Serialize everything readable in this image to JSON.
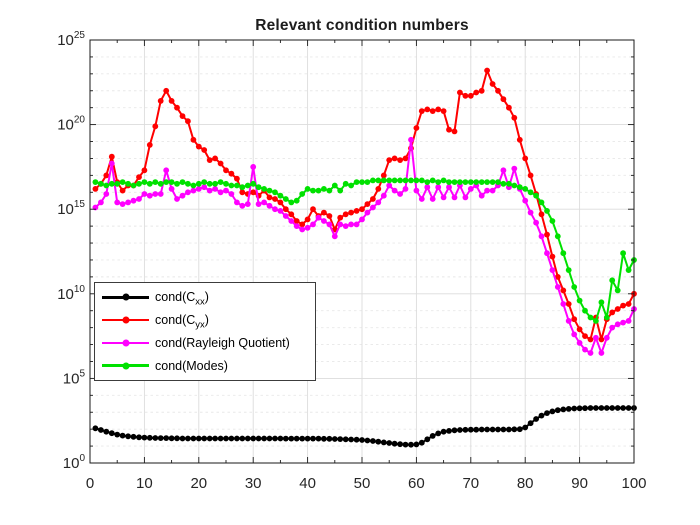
{
  "figure": {
    "background": "#ffffff",
    "axes_color": "#1a1a1a",
    "grid_major_color": "#dcdcdc",
    "grid_minor_color": "#e8e8e8"
  },
  "chart_data": {
    "type": "line",
    "title": "Relevant condition numbers",
    "xlabel": "",
    "ylabel": "",
    "xlim": [
      0,
      100
    ],
    "x_ticks": [
      0,
      10,
      20,
      30,
      40,
      50,
      60,
      70,
      80,
      90,
      100
    ],
    "y_scale": "log10",
    "y_tick_base": "10",
    "y_tick_exponents": [
      0,
      5,
      10,
      15,
      20,
      25
    ],
    "ylim_exponents": [
      0,
      25
    ],
    "grid": "major solid at labeled ticks, minor dashed at every decade",
    "legend_position": "inside middle-left",
    "x_start": 1,
    "x_step": 1,
    "values_note": "log10_values are the base-10 exponents read from the log axis; x runs 1..100",
    "series": [
      {
        "name": "cond(C_xx)",
        "label_pre": "cond(C",
        "label_sub": "xx",
        "label_post": ")",
        "color": "#000000",
        "log10_values": [
          2.05,
          1.95,
          1.85,
          1.76,
          1.68,
          1.62,
          1.58,
          1.55,
          1.52,
          1.5,
          1.49,
          1.48,
          1.47,
          1.47,
          1.46,
          1.46,
          1.45,
          1.45,
          1.45,
          1.45,
          1.45,
          1.45,
          1.45,
          1.45,
          1.45,
          1.45,
          1.45,
          1.45,
          1.45,
          1.45,
          1.45,
          1.45,
          1.45,
          1.45,
          1.45,
          1.44,
          1.44,
          1.44,
          1.44,
          1.44,
          1.44,
          1.44,
          1.43,
          1.43,
          1.42,
          1.41,
          1.4,
          1.39,
          1.38,
          1.36,
          1.33,
          1.3,
          1.26,
          1.22,
          1.18,
          1.14,
          1.11,
          1.09,
          1.08,
          1.1,
          1.2,
          1.4,
          1.6,
          1.75,
          1.85,
          1.9,
          1.93,
          1.95,
          1.96,
          1.97,
          1.97,
          1.98,
          1.98,
          1.98,
          1.98,
          1.98,
          1.98,
          1.99,
          2.0,
          2.1,
          2.35,
          2.6,
          2.8,
          2.95,
          3.05,
          3.12,
          3.17,
          3.2,
          3.22,
          3.23,
          3.24,
          3.25,
          3.25,
          3.25,
          3.25,
          3.25,
          3.25,
          3.25,
          3.25,
          3.25
        ]
      },
      {
        "name": "cond(C_yx)",
        "label_pre": "cond(C",
        "label_sub": "yx",
        "label_post": ")",
        "color": "#ff0000",
        "log10_values": [
          16.2,
          16.5,
          17.0,
          18.1,
          16.6,
          16.1,
          16.4,
          16.4,
          16.9,
          17.3,
          18.8,
          19.9,
          21.4,
          22.0,
          21.4,
          21.0,
          20.5,
          20.2,
          19.1,
          18.7,
          18.5,
          17.9,
          18.0,
          17.7,
          17.3,
          17.1,
          16.8,
          16.0,
          15.9,
          16.0,
          15.8,
          16.1,
          15.7,
          15.6,
          15.4,
          15.0,
          14.7,
          14.3,
          14.1,
          14.4,
          15.0,
          14.6,
          14.8,
          14.6,
          13.8,
          14.5,
          14.7,
          14.8,
          14.9,
          15.0,
          15.3,
          15.6,
          16.2,
          17.0,
          17.9,
          18.0,
          17.9,
          18.0,
          18.6,
          19.8,
          20.8,
          20.9,
          20.8,
          20.9,
          20.8,
          19.7,
          19.6,
          21.9,
          21.7,
          21.7,
          21.9,
          22.0,
          23.2,
          22.4,
          22.0,
          21.5,
          21.0,
          20.4,
          19.1,
          18.0,
          17.0,
          15.9,
          14.7,
          13.5,
          12.2,
          11.0,
          10.2,
          9.4,
          8.5,
          7.9,
          7.5,
          7.3,
          8.6,
          7.3,
          8.5,
          8.9,
          9.1,
          9.3,
          9.4,
          10.0
        ]
      },
      {
        "name": "cond(Rayleigh Quotient)",
        "label_pre": "cond(Rayleigh Quotient)",
        "label_sub": "",
        "label_post": "",
        "color": "#ff00ff",
        "log10_values": [
          15.1,
          15.4,
          15.9,
          17.7,
          15.4,
          15.3,
          15.4,
          15.5,
          15.6,
          15.9,
          15.8,
          15.9,
          15.9,
          17.3,
          16.2,
          15.6,
          15.8,
          16.0,
          16.1,
          16.2,
          16.3,
          16.1,
          16.2,
          16.0,
          16.1,
          15.9,
          15.4,
          15.2,
          15.3,
          17.5,
          15.3,
          15.4,
          15.2,
          15.0,
          14.9,
          14.6,
          14.3,
          14.0,
          13.8,
          13.9,
          14.1,
          14.5,
          14.3,
          14.1,
          13.4,
          14.1,
          14.0,
          14.1,
          14.1,
          14.4,
          14.8,
          15.1,
          15.4,
          15.8,
          16.4,
          16.1,
          15.9,
          16.2,
          19.1,
          16.1,
          15.6,
          16.3,
          15.6,
          16.3,
          15.7,
          16.3,
          15.7,
          16.4,
          15.7,
          16.2,
          16.4,
          15.8,
          16.1,
          16.1,
          16.4,
          17.3,
          16.3,
          17.4,
          16.2,
          15.5,
          14.8,
          14.2,
          13.4,
          12.4,
          11.4,
          10.4,
          9.4,
          8.4,
          7.6,
          7.1,
          6.7,
          6.5,
          7.4,
          6.5,
          7.4,
          8.0,
          8.2,
          8.3,
          8.4,
          9.1
        ]
      },
      {
        "name": "cond(Modes)",
        "label_pre": "cond(Modes)",
        "label_sub": "",
        "label_post": "",
        "color": "#00e100",
        "log10_values": [
          16.6,
          16.5,
          16.4,
          16.5,
          16.5,
          16.6,
          16.5,
          16.4,
          16.5,
          16.6,
          16.5,
          16.6,
          16.5,
          16.6,
          16.6,
          16.5,
          16.6,
          16.5,
          16.4,
          16.5,
          16.6,
          16.5,
          16.5,
          16.6,
          16.5,
          16.4,
          16.4,
          16.3,
          16.4,
          16.5,
          16.3,
          16.2,
          16.1,
          16.0,
          15.8,
          15.6,
          15.4,
          15.5,
          15.9,
          16.2,
          16.1,
          16.1,
          16.2,
          16.1,
          16.4,
          16.1,
          16.5,
          16.4,
          16.6,
          16.6,
          16.6,
          16.7,
          16.7,
          16.7,
          16.7,
          16.7,
          16.7,
          16.7,
          16.7,
          16.7,
          16.7,
          16.6,
          16.7,
          16.6,
          16.7,
          16.6,
          16.6,
          16.6,
          16.6,
          16.6,
          16.6,
          16.6,
          16.6,
          16.6,
          16.6,
          16.5,
          16.5,
          16.4,
          16.3,
          16.2,
          16.0,
          15.8,
          15.4,
          14.9,
          14.3,
          13.4,
          12.4,
          11.4,
          10.4,
          9.6,
          9.0,
          8.6,
          8.4,
          9.5,
          8.6,
          10.8,
          10.2,
          12.4,
          11.4,
          12.0
        ]
      }
    ]
  }
}
